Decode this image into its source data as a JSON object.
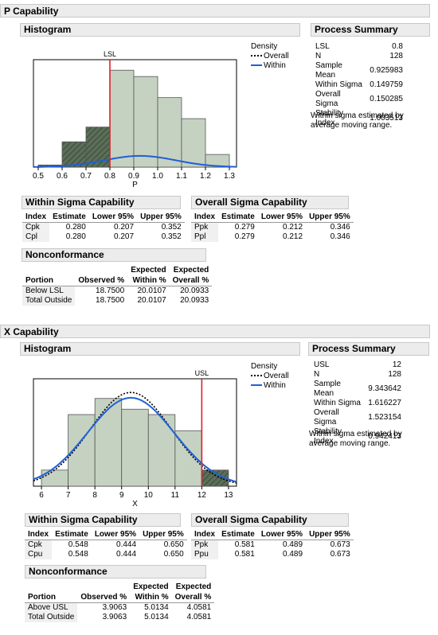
{
  "panels": [
    {
      "title": "P Capability",
      "histogram_title": "Histogram",
      "spec_label": "LSL",
      "x_label": "P",
      "x_ticks": [
        "0.5",
        "0.6",
        "0.7",
        "0.8",
        "0.9",
        "1.0",
        "1.1",
        "1.2",
        "1.3"
      ],
      "legend": {
        "title": "Density",
        "overall": "Overall",
        "within": "Within"
      },
      "summary_title": "Process Summary",
      "summary": [
        {
          "k": "LSL",
          "v": "0.8"
        },
        {
          "k": "N",
          "v": "128"
        },
        {
          "k": "Sample Mean",
          "v": "0.925983"
        },
        {
          "k": "Within Sigma",
          "v": "0.149759"
        },
        {
          "k": "Overall Sigma",
          "v": "0.150285"
        },
        {
          "k": "Stability Index",
          "v": "1.003513"
        }
      ],
      "note": "Within sigma estimated by average moving range.",
      "within_title": "Within Sigma Capability",
      "overall_title": "Overall Sigma Capability",
      "cap_headers": [
        "Index",
        "Estimate",
        "Lower 95%",
        "Upper 95%"
      ],
      "within_rows": [
        [
          "Cpk",
          "0.280",
          "0.207",
          "0.352"
        ],
        [
          "Cpl",
          "0.280",
          "0.207",
          "0.352"
        ]
      ],
      "overall_rows": [
        [
          "Ppk",
          "0.279",
          "0.212",
          "0.346"
        ],
        [
          "Ppl",
          "0.279",
          "0.212",
          "0.346"
        ]
      ],
      "nonconf_title": "Nonconformance",
      "nonconf_headers": {
        "portion": "Portion",
        "observed": "Observed %",
        "exp_within_1": "Expected",
        "exp_within_2": "Within %",
        "exp_overall_1": "Expected",
        "exp_overall_2": "Overall %"
      },
      "nonconf_rows": [
        [
          "Below LSL",
          "18.7500",
          "20.0107",
          "20.0933"
        ],
        [
          "Total Outside",
          "18.7500",
          "20.0107",
          "20.0933"
        ]
      ]
    },
    {
      "title": "X Capability",
      "histogram_title": "Histogram",
      "spec_label": "USL",
      "x_label": "X",
      "x_ticks": [
        "6",
        "7",
        "8",
        "9",
        "10",
        "11",
        "12",
        "13"
      ],
      "legend": {
        "title": "Density",
        "overall": "Overall",
        "within": "Within"
      },
      "summary_title": "Process Summary",
      "summary": [
        {
          "k": "USL",
          "v": "12"
        },
        {
          "k": "N",
          "v": "128"
        },
        {
          "k": "Sample Mean",
          "v": "9.343642"
        },
        {
          "k": "Within Sigma",
          "v": "1.616227"
        },
        {
          "k": "Overall Sigma",
          "v": "1.523154"
        },
        {
          "k": "Stability Index",
          "v": "0.942413"
        }
      ],
      "note": "Within sigma estimated by average moving range.",
      "within_title": "Within Sigma Capability",
      "overall_title": "Overall Sigma Capability",
      "cap_headers": [
        "Index",
        "Estimate",
        "Lower 95%",
        "Upper 95%"
      ],
      "within_rows": [
        [
          "Cpk",
          "0.548",
          "0.444",
          "0.650"
        ],
        [
          "Cpu",
          "0.548",
          "0.444",
          "0.650"
        ]
      ],
      "overall_rows": [
        [
          "Ppk",
          "0.581",
          "0.489",
          "0.673"
        ],
        [
          "Ppu",
          "0.581",
          "0.489",
          "0.673"
        ]
      ],
      "nonconf_title": "Nonconformance",
      "nonconf_headers": {
        "portion": "Portion",
        "observed": "Observed %",
        "exp_within_1": "Expected",
        "exp_within_2": "Within %",
        "exp_overall_1": "Expected",
        "exp_overall_2": "Overall %"
      },
      "nonconf_rows": [
        [
          "Above USL",
          "3.9063",
          "5.0134",
          "4.0581"
        ],
        [
          "Total Outside",
          "3.9063",
          "5.0134",
          "4.0581"
        ]
      ]
    }
  ],
  "chart_data": [
    {
      "type": "bar",
      "x_label": "P",
      "bin_edges": [
        0.5,
        0.6,
        0.7,
        0.8,
        0.9,
        1.0,
        1.1,
        1.2,
        1.3
      ],
      "heights": [
        0.05,
        0.6,
        0.95,
        2.3,
        2.15,
        1.65,
        1.15,
        0.3
      ],
      "xlim": [
        0.48,
        1.33
      ],
      "ylim": [
        0,
        2.55
      ],
      "spec": 0.8,
      "spec_type": "LSL",
      "within": {
        "mean": 0.925983,
        "sigma": 0.149759
      },
      "overall": {
        "mean": 0.925983,
        "sigma": 0.150285
      },
      "colors": {
        "bar": "#c5d2c2",
        "hatch": "#5a6e58",
        "spec": "#e0202a",
        "within": "#2060d8",
        "overall": "#000000"
      }
    },
    {
      "type": "bar",
      "x_label": "X",
      "bin_edges": [
        6,
        7,
        8,
        9,
        10,
        11,
        12,
        13
      ],
      "heights": [
        0.045,
        0.2,
        0.245,
        0.215,
        0.2,
        0.155,
        0.045
      ],
      "xlim": [
        5.7,
        13.3
      ],
      "ylim": [
        0,
        0.3
      ],
      "spec": 12,
      "spec_type": "USL",
      "within": {
        "mean": 9.343642,
        "sigma": 1.616227
      },
      "overall": {
        "mean": 9.343642,
        "sigma": 1.523154
      },
      "colors": {
        "bar": "#c5d2c2",
        "hatch": "#5a6e58",
        "spec": "#e0202a",
        "within": "#2060d8",
        "overall": "#000000"
      }
    }
  ]
}
